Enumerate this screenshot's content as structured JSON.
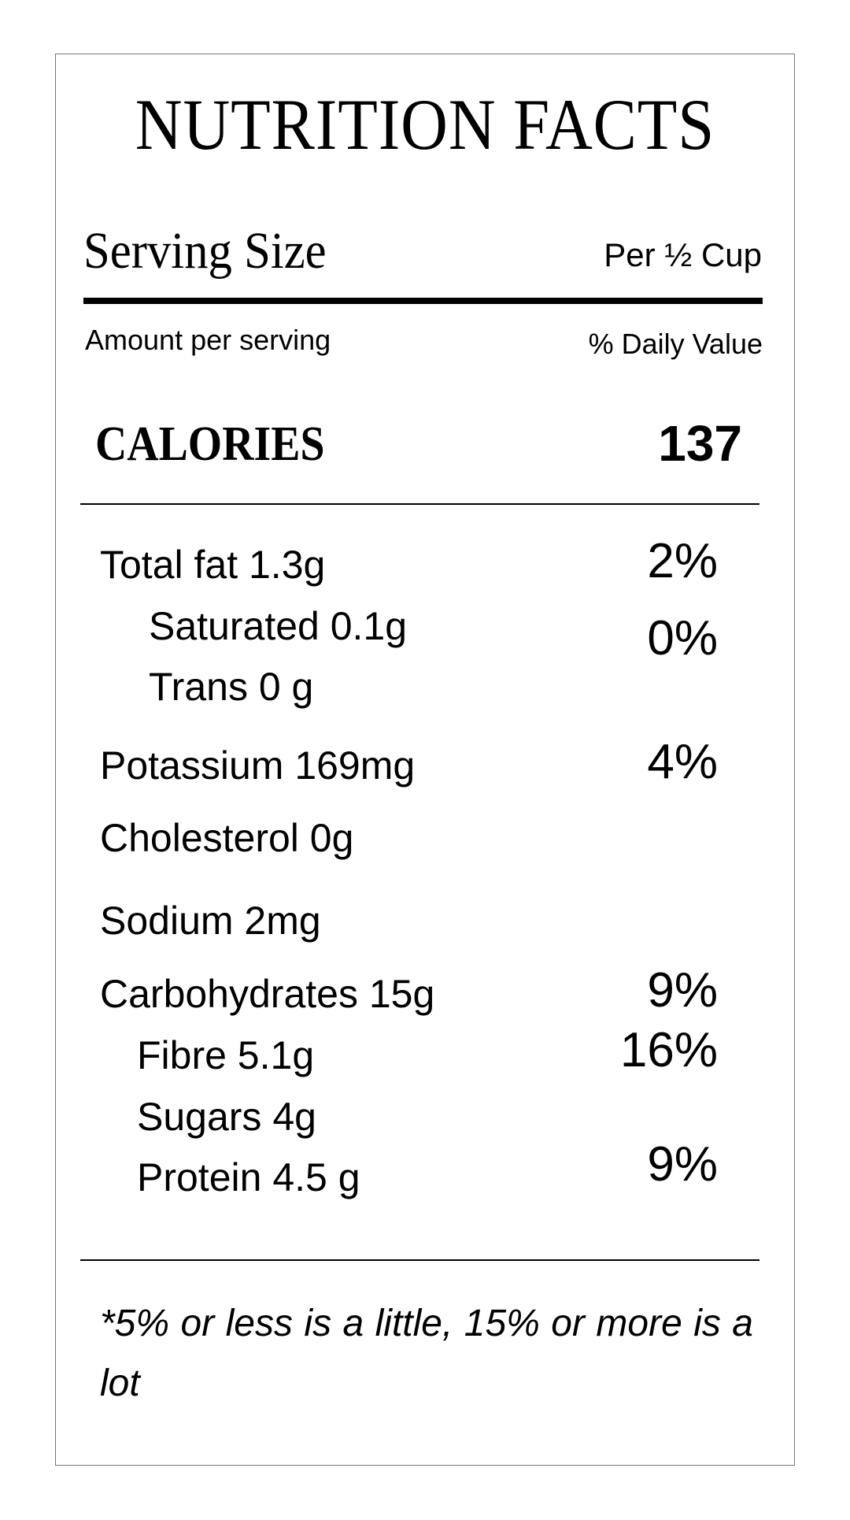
{
  "title": "NUTRITION FACTS",
  "serving": {
    "label": "Serving Size",
    "value": "Per ½ Cup"
  },
  "header": {
    "amount": "Amount per serving",
    "daily_value": "% Daily Value"
  },
  "calories": {
    "label": "CALORIES",
    "value": "137"
  },
  "nutrients": [
    {
      "label": "Total fat 1.3g",
      "percent": "2%"
    },
    {
      "label": "Saturated 0.1g",
      "percent": "0%"
    },
    {
      "label": "Trans 0 g"
    },
    {
      "label": "Potassium 169mg",
      "percent": "4%"
    },
    {
      "label": "Cholesterol 0g"
    },
    {
      "label": "Sodium 2mg"
    },
    {
      "label": "Carbohydrates 15g",
      "percent": "9%"
    },
    {
      "label": "Fibre 5.1g",
      "percent": "16%"
    },
    {
      "label": "Sugars 4g"
    },
    {
      "label": "Protein 4.5 g",
      "percent": "9%"
    }
  ],
  "footnote": "*5% or less is a little, 15% or more is a lot"
}
